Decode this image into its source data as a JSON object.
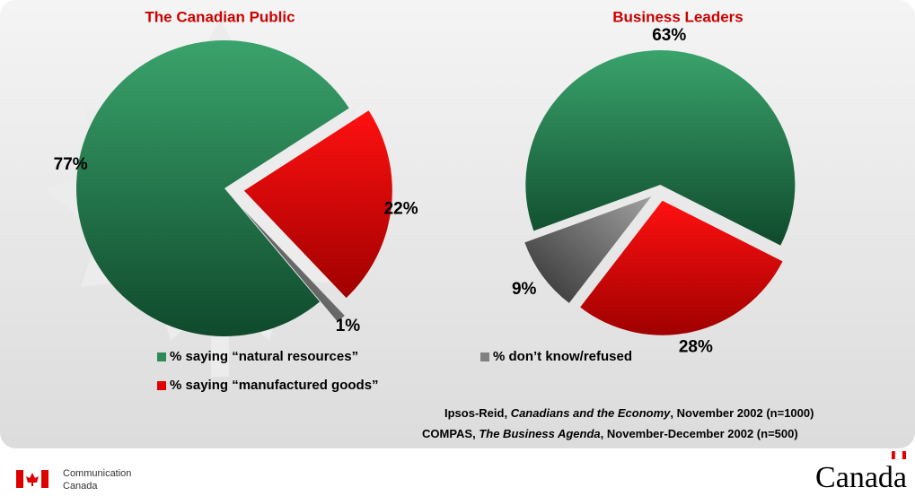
{
  "chart_data": [
    {
      "type": "pie",
      "title": "The Canadian Public",
      "values": [
        77,
        22,
        1
      ],
      "value_labels": [
        "77%",
        "22%",
        "1%"
      ]
    },
    {
      "type": "pie",
      "title": "Business Leaders",
      "values": [
        63,
        28,
        9
      ],
      "value_labels": [
        "63%",
        "28%",
        "9%"
      ]
    }
  ],
  "legend": [
    {
      "name": "% saying “natural resources”",
      "color": "#2e8b57"
    },
    {
      "name": "% saying “manufactured goods”",
      "color": "#e00000"
    },
    {
      "name": "% don’t know/refused",
      "color": "#808080"
    }
  ],
  "source": [
    {
      "org": "Ipsos-Reid, ",
      "title": "Canadians and the Economy",
      "rest": ", November 2002 (n=1000)"
    },
    {
      "org": "COMPAS, ",
      "title": "The Business Agenda",
      "rest": ", November-December 2002 (n=500)"
    }
  ],
  "footer": {
    "department": [
      "Communication",
      "Canada"
    ],
    "wordmark": "Canada"
  }
}
